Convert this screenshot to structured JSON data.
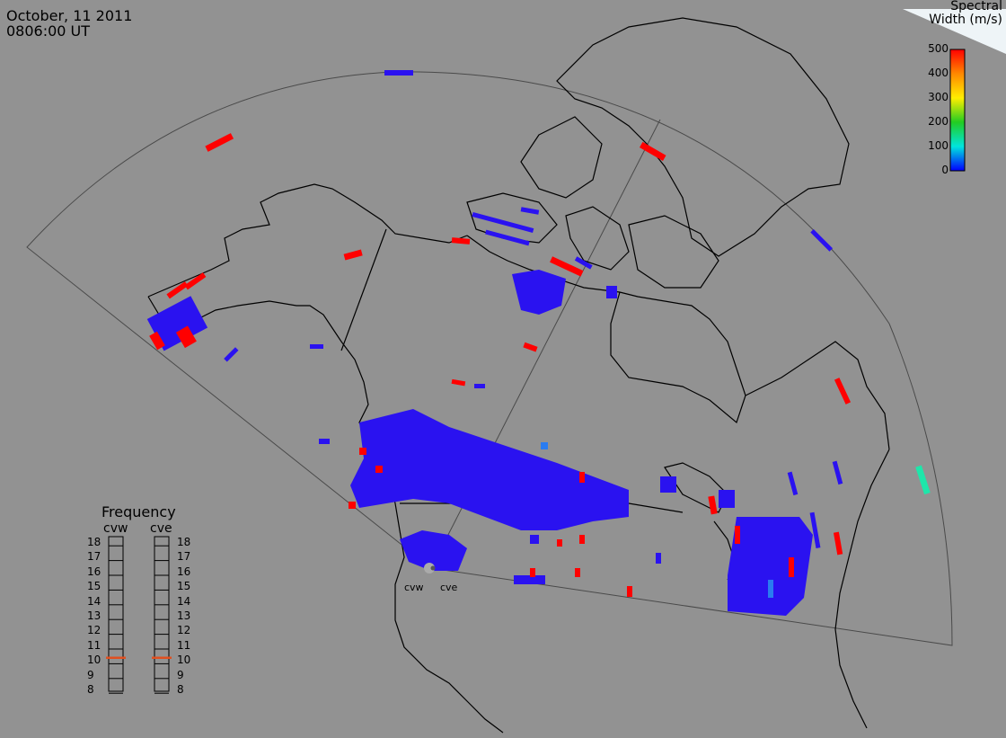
{
  "header": {
    "date": "October, 11 2011",
    "time": "0806:00 UT"
  },
  "colorbar": {
    "title_line1": "Spectral",
    "title_line2": "Width (m/s)",
    "ticks": [
      "500",
      "400",
      "300",
      "200",
      "100",
      "0"
    ],
    "colors": [
      "#ff0000",
      "#ff8800",
      "#ffee00",
      "#22cc22",
      "#00e5dd",
      "#0000ff"
    ]
  },
  "frequency": {
    "title": "Frequency",
    "columns": [
      {
        "name": "cvw",
        "selected_mhz": 11
      },
      {
        "name": "cve",
        "selected_mhz": 11
      }
    ],
    "ticks": [
      "18",
      "17",
      "16",
      "15",
      "14",
      "13",
      "12",
      "11",
      "10",
      "9",
      "8"
    ],
    "marker_color": "#e05020"
  },
  "radars": [
    {
      "name": "cvw"
    },
    {
      "name": "cve"
    }
  ],
  "colors": {
    "background": "#929292",
    "coast": "#000000",
    "fov": "#4a4a4a",
    "low_width": "#2a12f0",
    "high_width": "#ff0000",
    "mid_width": "#1ee6aa"
  }
}
